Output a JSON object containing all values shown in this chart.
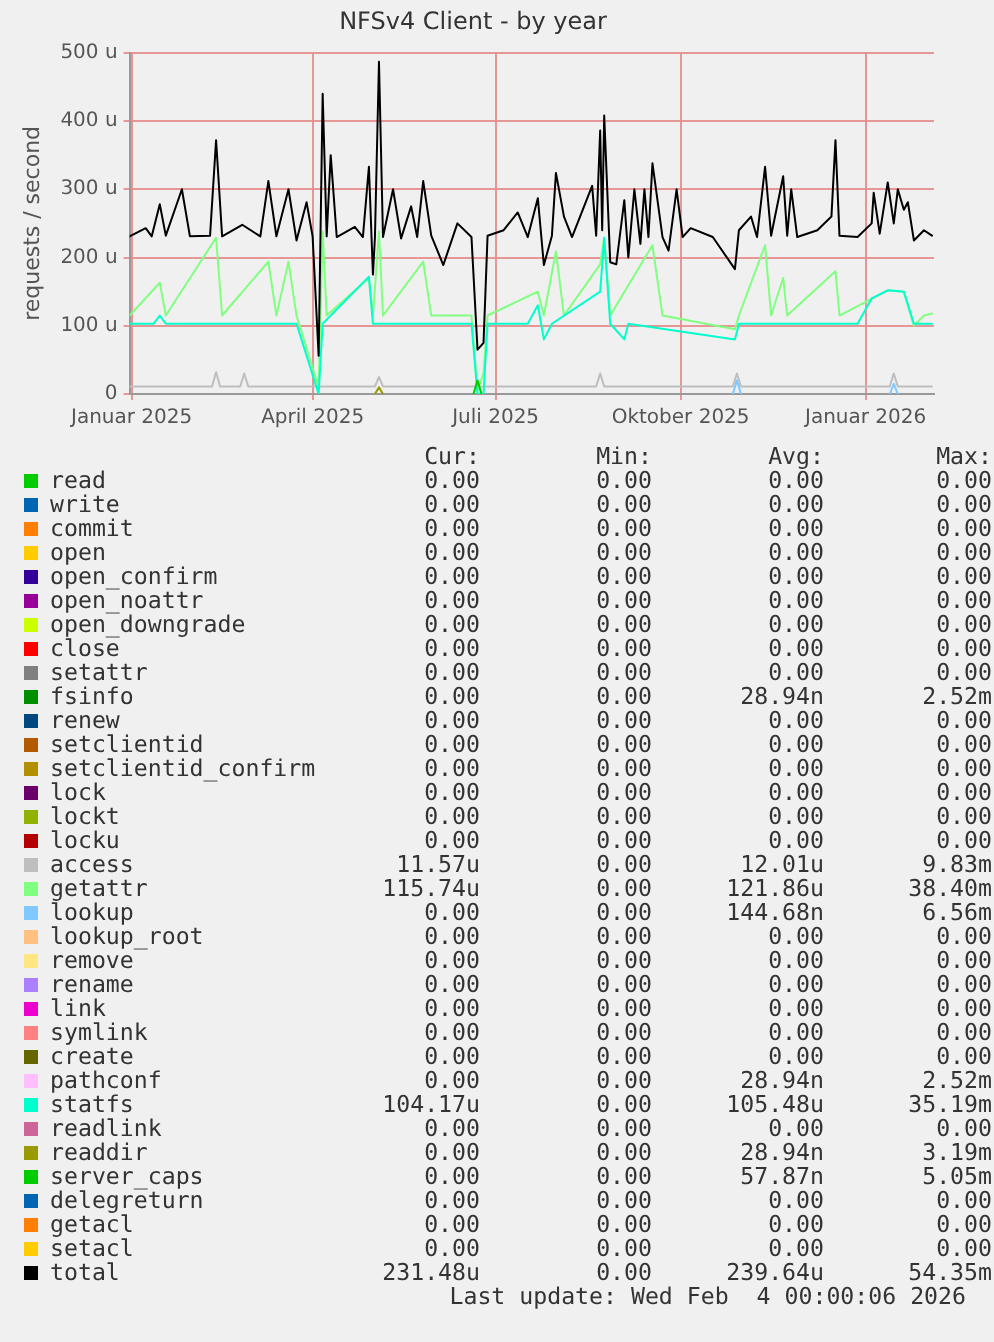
{
  "chart_data": {
    "type": "line",
    "title": "NFSv4 Client - by year",
    "ylabel": "requests / second",
    "xlim": [
      "2024-12-31",
      "2026-02-04"
    ],
    "xticks": [
      {
        "value": "2025-01-01",
        "label": "Januar 2025"
      },
      {
        "value": "2025-04-01",
        "label": "April 2025"
      },
      {
        "value": "2025-07-01",
        "label": "Juli 2025"
      },
      {
        "value": "2025-10-01",
        "label": "Oktober 2025"
      },
      {
        "value": "2026-01-01",
        "label": "Januar 2026"
      }
    ],
    "ylim": [
      0,
      500
    ],
    "yticks": [
      0,
      {
        "value": 100,
        "label": "100 u"
      },
      {
        "value": 200,
        "label": "200 u"
      },
      {
        "value": 300,
        "label": "300 u"
      },
      {
        "value": 400,
        "label": "400 u"
      },
      {
        "value": 500,
        "label": "500 u"
      }
    ],
    "grid": true,
    "legend": "bottom",
    "series": [
      {
        "name": "read",
        "color": "#00cc00"
      },
      {
        "name": "write",
        "color": "#0066b3"
      },
      {
        "name": "commit",
        "color": "#ff8000"
      },
      {
        "name": "open",
        "color": "#ffcc00"
      },
      {
        "name": "open_confirm",
        "color": "#330099"
      },
      {
        "name": "open_noattr",
        "color": "#990099"
      },
      {
        "name": "open_downgrade",
        "color": "#ccff00"
      },
      {
        "name": "close",
        "color": "#ff0000"
      },
      {
        "name": "setattr",
        "color": "#808080"
      },
      {
        "name": "fsinfo",
        "color": "#008f00"
      },
      {
        "name": "renew",
        "color": "#00487d"
      },
      {
        "name": "setclientid",
        "color": "#b35a00"
      },
      {
        "name": "setclientid_confirm",
        "color": "#b38f00"
      },
      {
        "name": "lock",
        "color": "#6b006b"
      },
      {
        "name": "lockt",
        "color": "#8fb300"
      },
      {
        "name": "locku",
        "color": "#b30000"
      },
      {
        "name": "access",
        "color": "#bebebe",
        "x": [
          "2024-12-31",
          "2025-02-10",
          "2025-02-12",
          "2025-02-14",
          "2025-02-24",
          "2025-02-26",
          "2025-02-28",
          "2025-05-02",
          "2025-05-04",
          "2025-05-06",
          "2025-08-20",
          "2025-08-22",
          "2025-08-24",
          "2025-10-27",
          "2025-10-29",
          "2025-10-31",
          "2026-01-13",
          "2026-01-15",
          "2026-01-17",
          "2026-02-03"
        ],
        "values": [
          11,
          11,
          32,
          11,
          11,
          30,
          11,
          11,
          25,
          11,
          11,
          30,
          11,
          11,
          30,
          11,
          11,
          30,
          11,
          11
        ]
      },
      {
        "name": "getattr",
        "color": "#80ff80",
        "x": [
          "2024-12-31",
          "2025-01-15",
          "2025-01-18",
          "2025-02-12",
          "2025-02-15",
          "2025-03-10",
          "2025-03-14",
          "2025-03-20",
          "2025-03-24",
          "2025-04-04",
          "2025-04-06",
          "2025-04-08",
          "2025-04-29",
          "2025-05-01",
          "2025-05-04",
          "2025-05-06",
          "2025-05-26",
          "2025-05-30",
          "2025-06-19",
          "2025-06-22",
          "2025-06-25",
          "2025-06-27",
          "2025-07-22",
          "2025-07-25",
          "2025-07-31",
          "2025-08-04",
          "2025-08-22",
          "2025-08-24",
          "2025-08-27",
          "2025-09-17",
          "2025-09-22",
          "2025-10-28",
          "2025-10-30",
          "2025-11-12",
          "2025-11-15",
          "2025-11-21",
          "2025-11-23",
          "2025-12-17",
          "2025-12-19",
          "2026-01-12",
          "2026-01-20",
          "2026-01-25",
          "2026-01-30",
          "2026-02-03"
        ],
        "values": [
          115,
          163,
          115,
          229,
          115,
          194,
          115,
          194,
          115,
          10,
          238,
          115,
          170,
          115,
          238,
          115,
          194,
          115,
          115,
          5,
          30,
          115,
          150,
          115,
          209,
          115,
          190,
          229,
          115,
          218,
          115,
          95,
          115,
          218,
          115,
          170,
          115,
          180,
          115,
          152,
          150,
          100,
          115,
          118
        ]
      },
      {
        "name": "lookup",
        "color": "#80c9ff",
        "x": [
          "2025-10-27",
          "2025-10-29",
          "2025-10-31",
          "2025-12-01",
          "2026-01-13",
          "2026-01-15",
          "2026-01-17"
        ],
        "values": [
          0,
          20,
          0,
          null,
          0,
          15,
          0
        ]
      },
      {
        "name": "lookup_root",
        "color": "#ffc080"
      },
      {
        "name": "remove",
        "color": "#ffe680"
      },
      {
        "name": "rename",
        "color": "#aa80ff"
      },
      {
        "name": "link",
        "color": "#ee00cc"
      },
      {
        "name": "symlink",
        "color": "#ff8080"
      },
      {
        "name": "create",
        "color": "#666600"
      },
      {
        "name": "pathconf",
        "color": "#ffbfff"
      },
      {
        "name": "statfs",
        "color": "#00ffcc",
        "x": [
          "2024-12-31",
          "2025-01-12",
          "2025-01-15",
          "2025-01-18",
          "2025-03-24",
          "2025-04-04",
          "2025-04-06",
          "2025-04-29",
          "2025-05-01",
          "2025-06-19",
          "2025-06-22",
          "2025-06-25",
          "2025-06-27",
          "2025-07-17",
          "2025-07-22",
          "2025-07-25",
          "2025-07-29",
          "2025-08-22",
          "2025-08-24",
          "2025-08-27",
          "2025-09-03",
          "2025-09-05",
          "2025-10-28",
          "2025-10-30",
          "2025-12-28",
          "2026-01-04",
          "2026-01-12",
          "2026-01-20",
          "2026-01-25",
          "2026-02-03"
        ],
        "values": [
          103,
          103,
          115,
          103,
          103,
          0,
          103,
          172,
          103,
          103,
          0,
          0,
          103,
          103,
          130,
          80,
          103,
          150,
          229,
          103,
          80,
          103,
          80,
          103,
          103,
          140,
          152,
          150,
          103,
          103
        ]
      },
      {
        "name": "readlink",
        "color": "#cc6699"
      },
      {
        "name": "readdir",
        "color": "#999900",
        "x": [
          "2025-05-02",
          "2025-05-04",
          "2025-05-06"
        ],
        "values": [
          0,
          10,
          0
        ]
      },
      {
        "name": "server_caps",
        "color": "#00cc00",
        "x": [
          "2025-06-20",
          "2025-06-22",
          "2025-06-24"
        ],
        "values": [
          0,
          20,
          0
        ]
      },
      {
        "name": "delegreturn",
        "color": "#0066b3"
      },
      {
        "name": "getacl",
        "color": "#ff8000"
      },
      {
        "name": "setacl",
        "color": "#ffcc00"
      },
      {
        "name": "total",
        "color": "#000000",
        "x": [
          "2024-12-31",
          "2025-01-08",
          "2025-01-11",
          "2025-01-15",
          "2025-01-18",
          "2025-01-26",
          "2025-01-30",
          "2025-02-09",
          "2025-02-12",
          "2025-02-15",
          "2025-02-25",
          "2025-03-06",
          "2025-03-10",
          "2025-03-14",
          "2025-03-20",
          "2025-03-24",
          "2025-03-29",
          "2025-04-01",
          "2025-04-04",
          "2025-04-06",
          "2025-04-08",
          "2025-04-10",
          "2025-04-13",
          "2025-04-22",
          "2025-04-26",
          "2025-04-29",
          "2025-05-01",
          "2025-05-02",
          "2025-05-04",
          "2025-05-06",
          "2025-05-11",
          "2025-05-15",
          "2025-05-20",
          "2025-05-23",
          "2025-05-26",
          "2025-05-30",
          "2025-06-05",
          "2025-06-12",
          "2025-06-19",
          "2025-06-22",
          "2025-06-25",
          "2025-06-27",
          "2025-07-05",
          "2025-07-12",
          "2025-07-17",
          "2025-07-22",
          "2025-07-25",
          "2025-07-29",
          "2025-07-31",
          "2025-08-04",
          "2025-08-08",
          "2025-08-18",
          "2025-08-20",
          "2025-08-22",
          "2025-08-23",
          "2025-08-24",
          "2025-08-27",
          "2025-08-30",
          "2025-09-03",
          "2025-09-05",
          "2025-09-08",
          "2025-09-11",
          "2025-09-13",
          "2025-09-15",
          "2025-09-17",
          "2025-09-22",
          "2025-09-25",
          "2025-09-29",
          "2025-10-02",
          "2025-10-06",
          "2025-10-17",
          "2025-10-28",
          "2025-10-30",
          "2025-11-05",
          "2025-11-08",
          "2025-11-12",
          "2025-11-15",
          "2025-11-21",
          "2025-11-23",
          "2025-11-25",
          "2025-11-28",
          "2025-12-08",
          "2025-12-15",
          "2025-12-17",
          "2025-12-19",
          "2025-12-28",
          "2026-01-04",
          "2026-01-05",
          "2026-01-08",
          "2026-01-12",
          "2026-01-15",
          "2026-01-17",
          "2026-01-20",
          "2026-01-22",
          "2026-01-25",
          "2026-01-30",
          "2026-02-03"
        ],
        "values": [
          231,
          243,
          231,
          278,
          232,
          300,
          231,
          232,
          372,
          231,
          248,
          231,
          312,
          231,
          300,
          225,
          281,
          231,
          56,
          440,
          231,
          350,
          230,
          245,
          230,
          333,
          175,
          230,
          487,
          230,
          300,
          228,
          275,
          230,
          312,
          232,
          189,
          250,
          230,
          65,
          75,
          232,
          240,
          266,
          230,
          287,
          189,
          232,
          324,
          260,
          230,
          305,
          232,
          386,
          240,
          408,
          193,
          190,
          284,
          200,
          300,
          220,
          300,
          230,
          338,
          230,
          210,
          300,
          230,
          243,
          230,
          183,
          240,
          260,
          230,
          333,
          232,
          319,
          232,
          300,
          230,
          240,
          260,
          372,
          232,
          230,
          250,
          295,
          235,
          310,
          250,
          300,
          270,
          281,
          225,
          240,
          232
        ]
      }
    ],
    "annotations": [
      "Cur:",
      "Min:",
      "Avg:",
      "Max:",
      "0.00",
      "0.00",
      "0.00",
      "0.00",
      "0.00",
      "0.00",
      "0.00",
      "0.00",
      "0.00",
      "0.00",
      "0.00",
      "0.00",
      "0.00",
      "0.00",
      "0.00",
      "0.00",
      "0.00",
      "0.00",
      "0.00",
      "0.00",
      "0.00",
      "0.00",
      "0.00",
      "0.00",
      "0.00",
      "0.00",
      "0.00",
      "0.00",
      "0.00",
      "0.00",
      "0.00",
      "0.00",
      "0.00",
      "0.00",
      "0.00",
      "0.00",
      "0.00",
      "0.00",
      "28.94n",
      "2.52m",
      "0.00",
      "0.00",
      "0.00",
      "0.00",
      "0.00",
      "0.00",
      "0.00",
      "0.00",
      "0.00",
      "0.00",
      "0.00",
      "0.00",
      "0.00",
      "0.00",
      "0.00",
      "0.00",
      "0.00",
      "0.00",
      "0.00",
      "0.00",
      "0.00",
      "0.00",
      "0.00",
      "0.00",
      "11.57u",
      "0.00",
      "12.01u",
      "9.83m",
      "115.74u",
      "0.00",
      "121.86u",
      "38.40m",
      "0.00",
      "0.00",
      "144.68n",
      "6.56m",
      "0.00",
      "0.00",
      "0.00",
      "0.00",
      "0.00",
      "0.00",
      "0.00",
      "0.00",
      "0.00",
      "0.00",
      "0.00",
      "0.00",
      "0.00",
      "0.00",
      "0.00",
      "0.00",
      "0.00",
      "0.00",
      "0.00",
      "0.00",
      "0.00",
      "0.00",
      "0.00",
      "0.00",
      "0.00",
      "0.00",
      "28.94n",
      "2.52m",
      "104.17u",
      "0.00",
      "105.48u",
      "35.19m",
      "0.00",
      "0.00",
      "0.00",
      "0.00",
      "0.00",
      "0.00",
      "28.94n",
      "3.19m",
      "0.00",
      "0.00",
      "57.87n",
      "5.05m",
      "0.00",
      "0.00",
      "0.00",
      "0.00",
      "0.00",
      "0.00",
      "0.00",
      "0.00",
      "0.00",
      "0.00",
      "0.00",
      "0.00",
      "231.48u",
      "0.00",
      "239.64u",
      "54.35m",
      "Last update: Wed Feb  4 00:00:06 2026"
    ]
  }
}
